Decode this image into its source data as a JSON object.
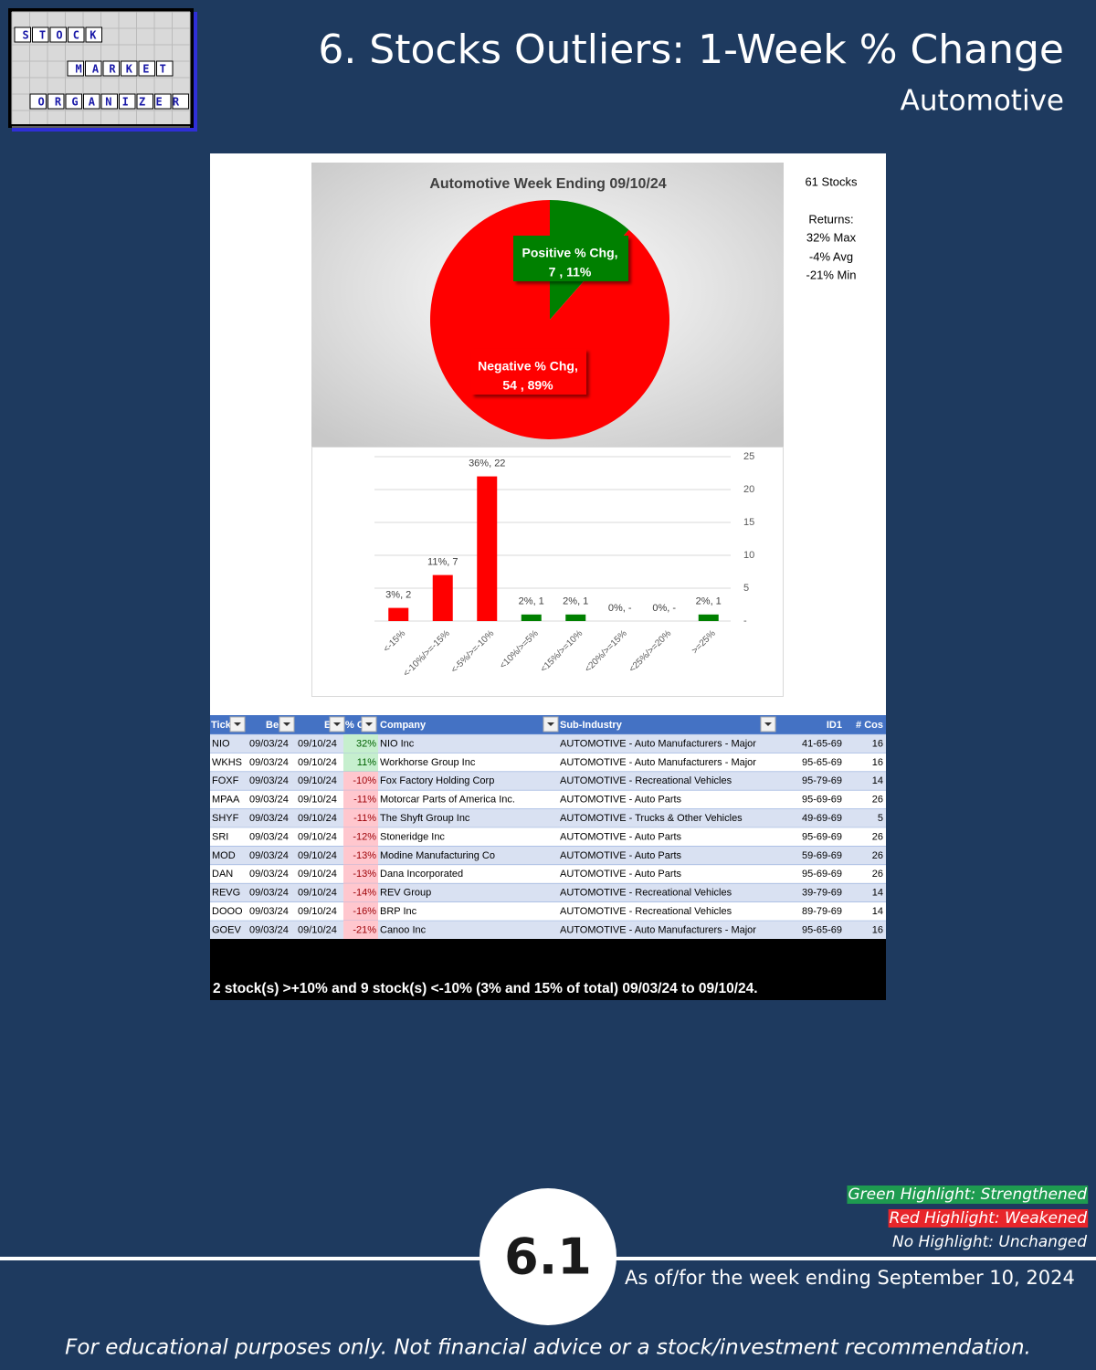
{
  "header": {
    "title": "6. Stocks Outliers: 1-Week % Change",
    "subtitle": "Automotive"
  },
  "logo": {
    "words": [
      "STOCK",
      "MARKET",
      "ORGANIZER"
    ]
  },
  "chart_data": [
    {
      "type": "pie",
      "title": "Automotive Week Ending 09/10/24",
      "categories": [
        "Positive % Chg,",
        "Negative % Chg,"
      ],
      "values": [
        7,
        54
      ],
      "value_labels": [
        "7 , 11%",
        "54 , 89%"
      ],
      "colors": [
        "#008000",
        "#ff0000"
      ]
    },
    {
      "type": "bar",
      "categories": [
        "<-15%",
        "<-10%/>=-15%",
        "<-5%/>=-10%",
        "<10%/>=5%",
        "<15%/>=10%",
        "<20%/>=15%",
        "<25%/>=20%",
        ">=25%"
      ],
      "values": [
        2,
        7,
        22,
        1,
        1,
        0,
        0,
        1
      ],
      "value_labels": [
        "3%,  2",
        "11%,  7",
        "36%,  22",
        "2%,  1",
        "2%,  1",
        "0%,  -",
        "0%,  -",
        "2%,  1"
      ],
      "colors": [
        "#ff0000",
        "#ff0000",
        "#ff0000",
        "#008000",
        "#008000",
        "#008000",
        "#008000",
        "#008000"
      ],
      "ylim": [
        0,
        25
      ],
      "yticks": [
        {
          "value": 0,
          "label": "-"
        },
        5,
        10,
        15,
        20,
        25
      ],
      "grid": true
    }
  ],
  "stats": {
    "count": "61 Stocks",
    "heading": "Returns:",
    "max": "32% Max",
    "avg": "-4% Avg",
    "min": "-21% Min"
  },
  "table": {
    "header": [
      "Tick",
      "Be",
      "E",
      "% C",
      "Company",
      "Sub-Industry",
      "ID1",
      "# Cos"
    ],
    "rows": [
      [
        "NIO",
        "09/03/24",
        "09/10/24",
        "32%",
        "NIO Inc",
        "AUTOMOTIVE - Auto Manufacturers - Major",
        "41-65-69",
        "16"
      ],
      [
        "WKHS",
        "09/03/24",
        "09/10/24",
        "11%",
        "Workhorse Group Inc",
        "AUTOMOTIVE - Auto Manufacturers - Major",
        "95-65-69",
        "16"
      ],
      [
        "FOXF",
        "09/03/24",
        "09/10/24",
        "-10%",
        "Fox Factory Holding Corp",
        "AUTOMOTIVE - Recreational Vehicles",
        "95-79-69",
        "14"
      ],
      [
        "MPAA",
        "09/03/24",
        "09/10/24",
        "-11%",
        "Motorcar Parts of America Inc.",
        "AUTOMOTIVE - Auto Parts",
        "95-69-69",
        "26"
      ],
      [
        "SHYF",
        "09/03/24",
        "09/10/24",
        "-11%",
        "The Shyft Group Inc",
        "AUTOMOTIVE - Trucks & Other Vehicles",
        "49-69-69",
        "5"
      ],
      [
        "SRI",
        "09/03/24",
        "09/10/24",
        "-12%",
        "Stoneridge Inc",
        "AUTOMOTIVE - Auto Parts",
        "95-69-69",
        "26"
      ],
      [
        "MOD",
        "09/03/24",
        "09/10/24",
        "-13%",
        "Modine Manufacturing Co",
        "AUTOMOTIVE - Auto Parts",
        "59-69-69",
        "26"
      ],
      [
        "DAN",
        "09/03/24",
        "09/10/24",
        "-13%",
        "Dana Incorporated",
        "AUTOMOTIVE - Auto Parts",
        "95-69-69",
        "26"
      ],
      [
        "REVG",
        "09/03/24",
        "09/10/24",
        "-14%",
        "REV Group",
        "AUTOMOTIVE - Recreational Vehicles",
        "39-79-69",
        "14"
      ],
      [
        "DOOO",
        "09/03/24",
        "09/10/24",
        "-16%",
        "BRP Inc",
        "AUTOMOTIVE - Recreational Vehicles",
        "89-79-69",
        "14"
      ],
      [
        "GOEV",
        "09/03/24",
        "09/10/24",
        "-21%",
        "Canoo Inc",
        "AUTOMOTIVE - Auto Manufacturers - Major",
        "95-65-69",
        "16"
      ]
    ],
    "summary": "2 stock(s) >+10% and 9 stock(s) <-10% (3% and 15% of total) 09/03/24 to 09/10/24."
  },
  "legend": [
    "Green Highlight: Strengthened",
    "Red Highlight: Weakened",
    "No Highlight: Unchanged"
  ],
  "footer": {
    "badge": "6.1",
    "as_of": "As of/for the week ending September 10, 2024",
    "disclaimer": "For educational purposes only. Not financial advice or a stock/investment recommendation."
  }
}
